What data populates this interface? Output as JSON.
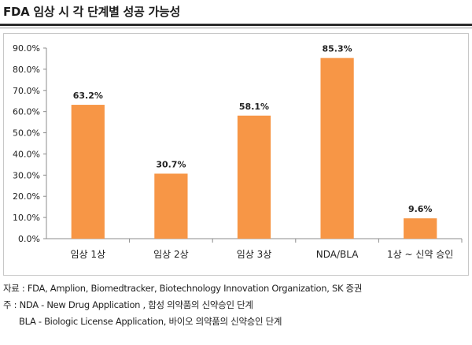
{
  "title": "FDA 임상 시 각 단계별 성공 가능성",
  "chart_data": {
    "type": "bar",
    "categories": [
      "임상 1상",
      "임상 2상",
      "임상 3상",
      "NDA/BLA",
      "1상 ~ 신약 승인"
    ],
    "values": [
      63.2,
      30.7,
      58.1,
      85.3,
      9.6
    ],
    "data_labels": [
      "63.2%",
      "30.7%",
      "58.1%",
      "85.3%",
      "9.6%"
    ],
    "ylim": [
      0,
      90
    ],
    "yticks": [
      "0.0%",
      "10.0%",
      "20.0%",
      "30.0%",
      "40.0%",
      "50.0%",
      "60.0%",
      "70.0%",
      "80.0%",
      "90.0%"
    ],
    "bar_color": "#f79646",
    "grid": false,
    "legend": "none"
  },
  "footnotes": {
    "source": "자료 : FDA, Amplion, Biomedtracker, Biotechnology Innovation Organization, SK 증권",
    "note1": "주 : NDA - New Drug Application , 합성 의약품의 신약승인 단계",
    "note2": "BLA - Biologic License Application, 바이오 의약품의 신약승인 단계"
  }
}
